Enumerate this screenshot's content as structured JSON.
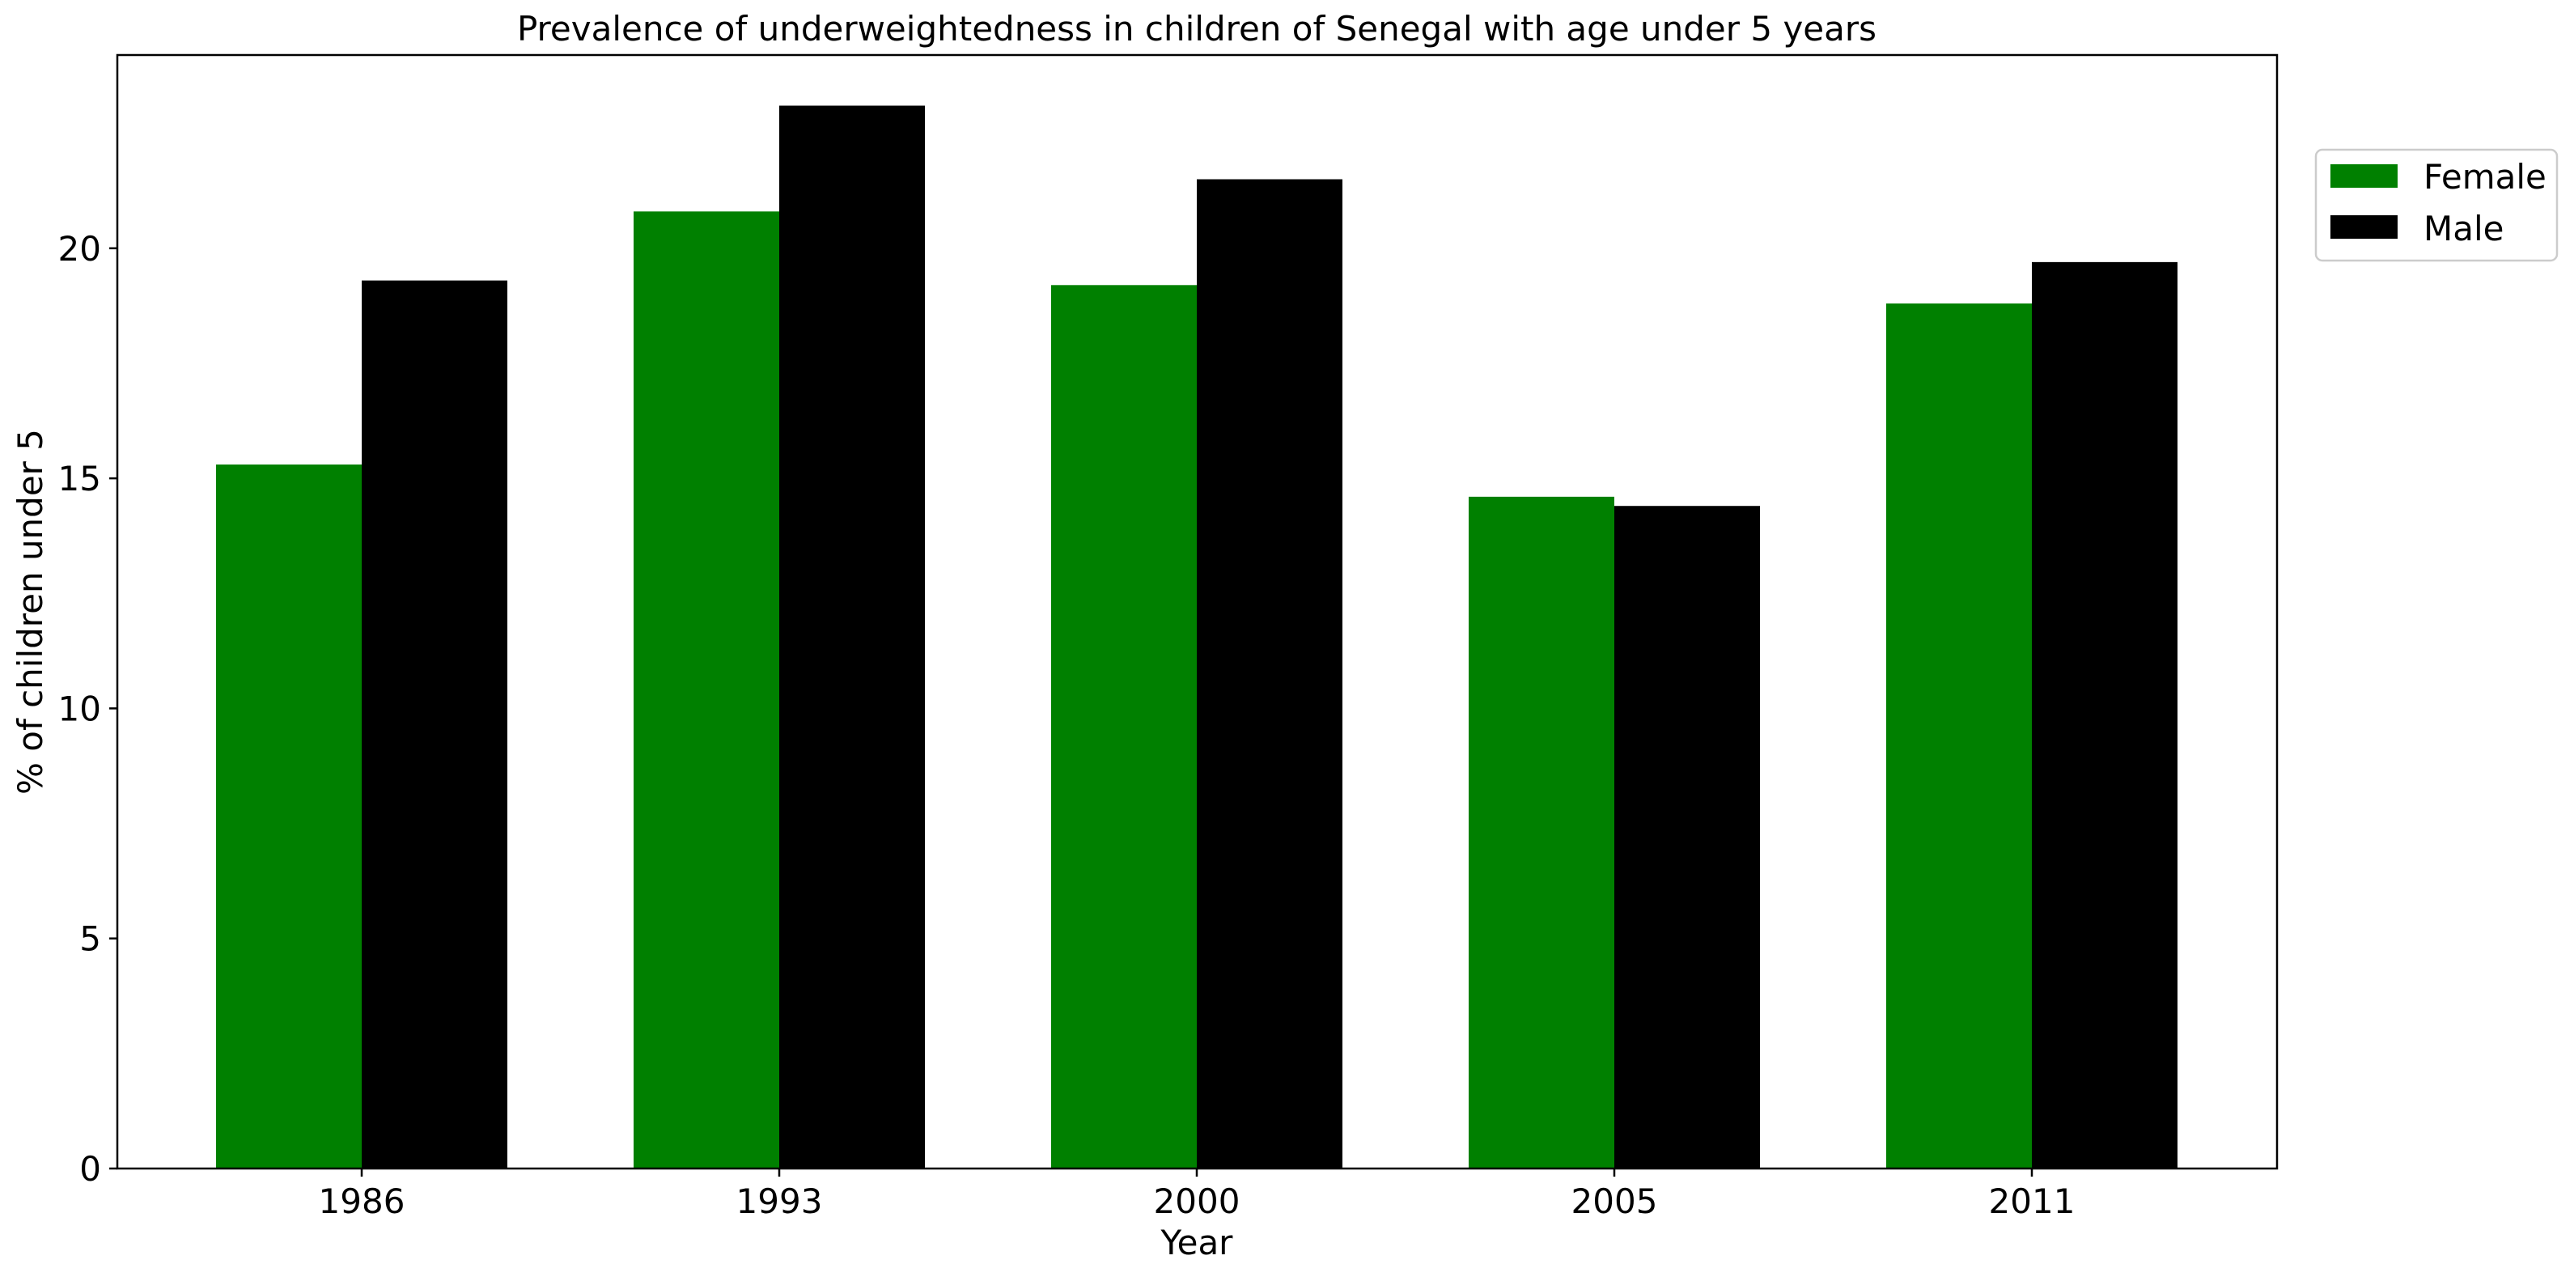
{
  "chart_data": {
    "type": "bar",
    "title": "Prevalence of underweightedness in children of Senegal with age under 5 years",
    "xlabel": "Year",
    "ylabel": "% of children under 5",
    "categories": [
      "1986",
      "1993",
      "2000",
      "2005",
      "2011"
    ],
    "series": [
      {
        "name": "Female",
        "color": "#008000",
        "values": [
          15.3,
          20.8,
          19.2,
          14.6,
          18.8
        ]
      },
      {
        "name": "Male",
        "color": "#000000",
        "values": [
          19.3,
          23.1,
          21.5,
          14.4,
          19.7
        ]
      }
    ],
    "ylim": [
      0,
      24.2
    ],
    "yticks": [
      0,
      5,
      10,
      15,
      20
    ],
    "grid": false,
    "legend_position": "outside upper right"
  }
}
